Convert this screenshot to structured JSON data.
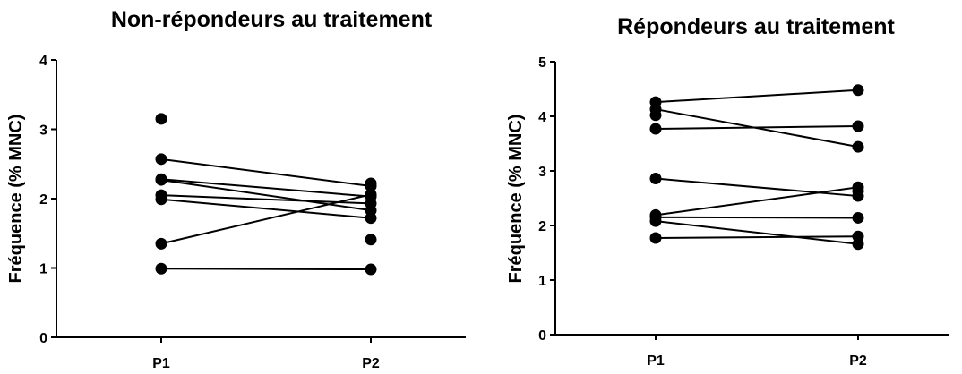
{
  "chart_data": [
    {
      "type": "line",
      "title": "Non-répondeurs au traitement",
      "ylabel": "Fréquence (% MNC)",
      "xlabel": "",
      "categories": [
        "P1",
        "P2"
      ],
      "ylim": [
        0,
        4
      ],
      "yticks": [
        "0",
        "1",
        "2",
        "3",
        "4"
      ],
      "grid": false,
      "pairs": [
        [
          2.57,
          2.18
        ],
        [
          2.28,
          2.03
        ],
        [
          2.27,
          1.83
        ],
        [
          2.05,
          1.93
        ],
        [
          1.99,
          1.72
        ],
        [
          1.35,
          2.06
        ],
        [
          0.99,
          0.98
        ]
      ],
      "unpaired": [
        {
          "category": "P1",
          "value": 3.15
        },
        {
          "category": "P2",
          "value": 2.22
        },
        {
          "category": "P2",
          "value": 1.41
        }
      ]
    },
    {
      "type": "line",
      "title": "Répondeurs au traitement",
      "ylabel": "Fréquence (% MNC)",
      "xlabel": "",
      "categories": [
        "P1",
        "P2"
      ],
      "ylim": [
        0,
        5
      ],
      "yticks": [
        "0",
        "1",
        "2",
        "3",
        "4",
        "5"
      ],
      "grid": false,
      "pairs": [
        [
          4.26,
          4.48
        ],
        [
          4.13,
          3.44
        ],
        [
          3.77,
          3.82
        ],
        [
          2.86,
          2.54
        ],
        [
          2.19,
          2.7
        ],
        [
          2.15,
          2.14
        ],
        [
          2.08,
          1.66
        ],
        [
          1.77,
          1.8
        ]
      ],
      "unpaired": [
        {
          "category": "P1",
          "value": 4.02
        },
        {
          "category": "P2",
          "value": 2.63
        }
      ]
    }
  ]
}
